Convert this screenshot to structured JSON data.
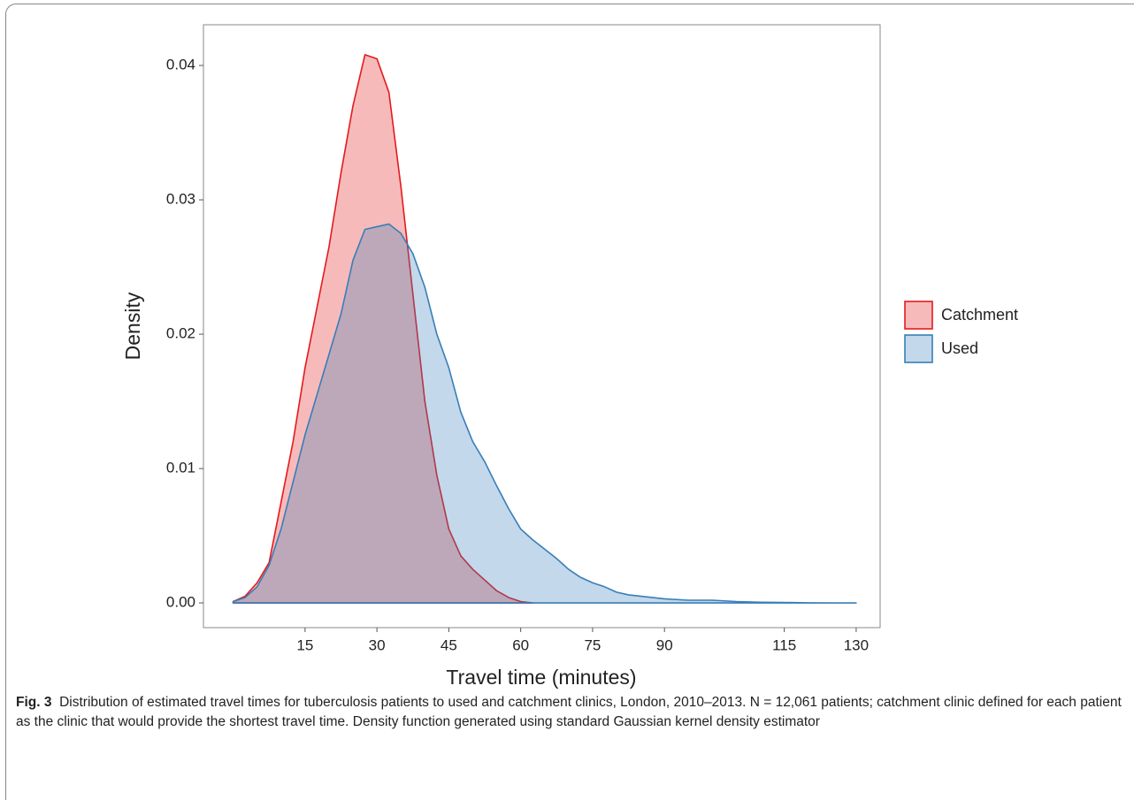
{
  "chart_data": {
    "type": "area",
    "x_label": "Travel time (minutes)",
    "y_label": "Density",
    "x": [
      0,
      2.5,
      5,
      7.5,
      10,
      12.5,
      15,
      17.5,
      20,
      22.5,
      25,
      27.5,
      30,
      32.5,
      35,
      37.5,
      40,
      42.5,
      45,
      47.5,
      50,
      52.5,
      55,
      57.5,
      60,
      62.5,
      65,
      67.5,
      70,
      72.5,
      75,
      77.5,
      80,
      82.5,
      85,
      90,
      95,
      100,
      105,
      110,
      115,
      120,
      125,
      130
    ],
    "series": [
      {
        "name": "Catchment",
        "color": "#e41a1c",
        "values": [
          0.0001,
          0.0005,
          0.0015,
          0.003,
          0.0075,
          0.012,
          0.0175,
          0.022,
          0.0265,
          0.032,
          0.037,
          0.0408,
          0.0405,
          0.038,
          0.031,
          0.023,
          0.015,
          0.0095,
          0.0055,
          0.0035,
          0.0025,
          0.0017,
          0.0009,
          0.0004,
          0.0001,
          0,
          null,
          null,
          null,
          null,
          null,
          null,
          null,
          null,
          null,
          null,
          null,
          null,
          null,
          null,
          null,
          null,
          null,
          null
        ]
      },
      {
        "name": "Used",
        "color": "#377eb8",
        "values": [
          0.0001,
          0.0004,
          0.0012,
          0.0028,
          0.0055,
          0.009,
          0.0125,
          0.0155,
          0.0185,
          0.0215,
          0.0255,
          0.0278,
          0.028,
          0.0282,
          0.0275,
          0.026,
          0.0235,
          0.02,
          0.0175,
          0.0142,
          0.012,
          0.0105,
          0.0087,
          0.007,
          0.0055,
          0.0047,
          0.004,
          0.0033,
          0.0025,
          0.0019,
          0.0015,
          0.0012,
          0.0008,
          0.0006,
          0.0005,
          0.0003,
          0.0002,
          0.0002,
          0.0001,
          5e-05,
          3e-05,
          1e-05,
          0,
          0
        ]
      }
    ],
    "xlim": [
      -6.2,
      135
    ],
    "ylim": [
      -0.00184,
      0.04303
    ],
    "xticks": [
      15,
      30,
      45,
      60,
      75,
      90,
      115,
      130
    ],
    "yticks": [
      {
        "value": 0,
        "label": "0.00"
      },
      {
        "value": 0.01,
        "label": "0.01"
      },
      {
        "value": 0.02,
        "label": "0.02"
      },
      {
        "value": 0.03,
        "label": "0.03"
      },
      {
        "value": 0.04,
        "label": "0.04"
      }
    ],
    "grid": false,
    "legend": "right",
    "caption_label": "Fig. 3",
    "caption": "Distribution of estimated travel times for tuberculosis patients to used and catchment clinics, London, 2010–2013. N = 12,061 patients; catchment clinic defined for each patient as the clinic that would provide the shortest travel time. Density function generated using standard Gaussian kernel density estimator"
  }
}
